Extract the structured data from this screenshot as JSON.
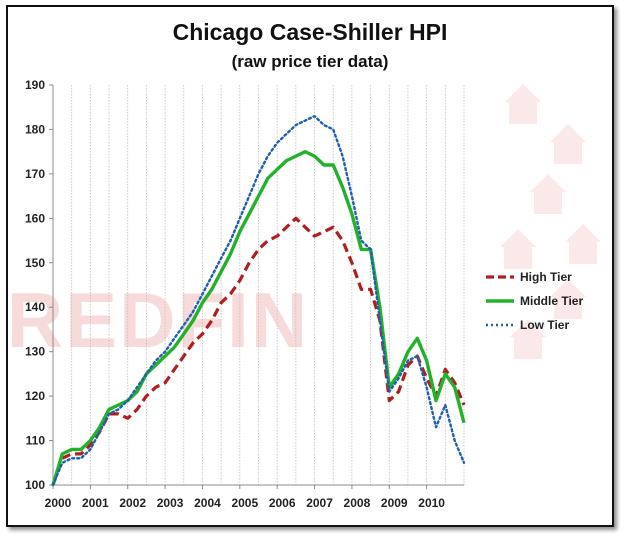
{
  "chart_data": {
    "type": "line",
    "title": "Chicago Case-Shiller HPI",
    "subtitle": "(raw price tier data)",
    "xlabel": "",
    "ylabel": "",
    "xlim": [
      2000,
      2011
    ],
    "ylim": [
      100,
      190
    ],
    "x_ticks": [
      "2000",
      "2001",
      "2002",
      "2003",
      "2004",
      "2005",
      "2006",
      "2007",
      "2008",
      "2009",
      "2010"
    ],
    "y_ticks": [
      100,
      110,
      120,
      130,
      140,
      150,
      160,
      170,
      180,
      190
    ],
    "grid": "vertical dotted",
    "legend_position": "right",
    "watermark": "REDFIN",
    "series": [
      {
        "name": "High Tier",
        "color": "#b01e1e",
        "style": "dashed",
        "x": [
          2000,
          2000.25,
          2000.5,
          2000.75,
          2001,
          2001.25,
          2001.5,
          2001.75,
          2002,
          2002.25,
          2002.5,
          2002.75,
          2003,
          2003.25,
          2003.5,
          2003.75,
          2004,
          2004.25,
          2004.5,
          2004.75,
          2005,
          2005.25,
          2005.5,
          2005.75,
          2006,
          2006.25,
          2006.5,
          2006.75,
          2007,
          2007.25,
          2007.5,
          2007.75,
          2008,
          2008.25,
          2008.5,
          2008.75,
          2009,
          2009.25,
          2009.5,
          2009.75,
          2010,
          2010.25,
          2010.5,
          2010.75,
          2011
        ],
        "y": [
          100,
          106,
          107,
          107,
          109,
          112,
          116,
          116,
          115,
          117,
          120,
          122,
          123,
          126,
          129,
          132,
          134,
          137,
          141,
          143,
          146,
          150,
          153,
          155,
          156,
          158,
          160,
          158,
          156,
          157,
          158,
          155,
          150,
          144,
          144,
          137,
          119,
          121,
          127,
          129,
          124,
          120,
          126,
          123,
          118
        ]
      },
      {
        "name": "Middle Tier",
        "color": "#22b22a",
        "style": "solid",
        "x": [
          2000,
          2000.25,
          2000.5,
          2000.75,
          2001,
          2001.25,
          2001.5,
          2001.75,
          2002,
          2002.25,
          2002.5,
          2002.75,
          2003,
          2003.25,
          2003.5,
          2003.75,
          2004,
          2004.25,
          2004.5,
          2004.75,
          2005,
          2005.25,
          2005.5,
          2005.75,
          2006,
          2006.25,
          2006.5,
          2006.75,
          2007,
          2007.25,
          2007.5,
          2007.75,
          2008,
          2008.25,
          2008.5,
          2008.75,
          2009,
          2009.25,
          2009.5,
          2009.75,
          2010,
          2010.25,
          2010.5,
          2010.75,
          2011
        ],
        "y": [
          100,
          107,
          108,
          108,
          110,
          113,
          117,
          118,
          119,
          121,
          125,
          127,
          129,
          131,
          134,
          137,
          141,
          144,
          148,
          152,
          157,
          161,
          165,
          169,
          171,
          173,
          174,
          175,
          174,
          172,
          172,
          167,
          161,
          153,
          153,
          140,
          122,
          125,
          130,
          133,
          128,
          119,
          125,
          122,
          114
        ]
      },
      {
        "name": "Low Tier",
        "color": "#1f5fb0",
        "style": "dotted",
        "x": [
          2000,
          2000.25,
          2000.5,
          2000.75,
          2001,
          2001.25,
          2001.5,
          2001.75,
          2002,
          2002.25,
          2002.5,
          2002.75,
          2003,
          2003.25,
          2003.5,
          2003.75,
          2004,
          2004.25,
          2004.5,
          2004.75,
          2005,
          2005.25,
          2005.5,
          2005.75,
          2006,
          2006.25,
          2006.5,
          2006.75,
          2007,
          2007.25,
          2007.5,
          2007.75,
          2008,
          2008.25,
          2008.5,
          2008.75,
          2009,
          2009.25,
          2009.5,
          2009.75,
          2010,
          2010.25,
          2010.5,
          2010.75,
          2011
        ],
        "y": [
          100,
          105,
          106,
          106,
          108,
          112,
          116,
          117,
          119,
          122,
          125,
          128,
          130,
          133,
          136,
          139,
          143,
          147,
          151,
          155,
          160,
          165,
          170,
          174,
          177,
          179,
          181,
          182,
          183,
          181,
          180,
          174,
          165,
          155,
          153,
          137,
          121,
          124,
          128,
          129,
          122,
          113,
          118,
          110,
          105
        ]
      }
    ]
  }
}
